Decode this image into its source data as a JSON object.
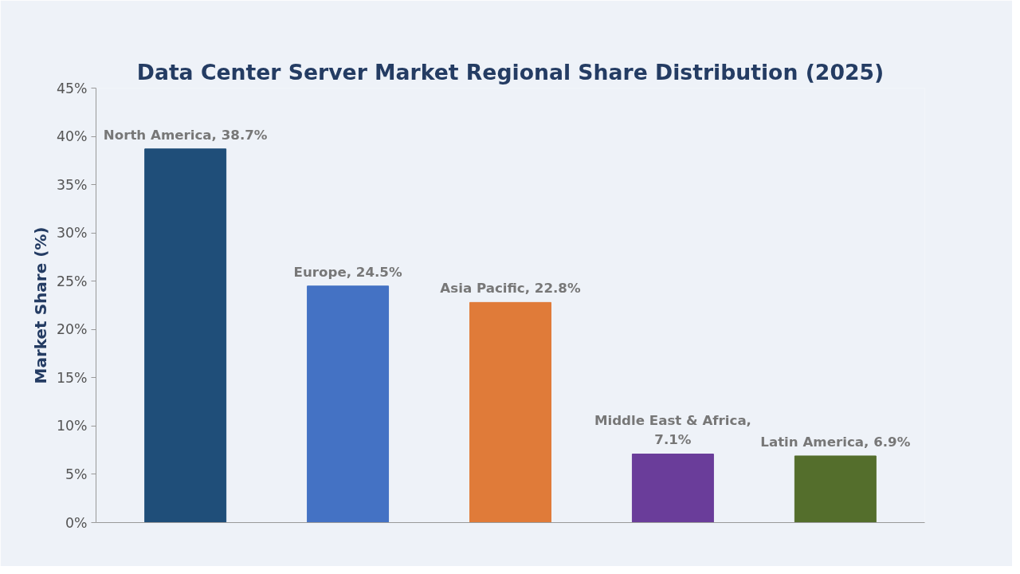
{
  "chart_data": {
    "type": "bar",
    "title": "Data Center Server Market Regional Share Distribution (2025)",
    "ylabel": "Market Share (%)",
    "categories": [
      null,
      null,
      null,
      null,
      null
    ],
    "values": [
      38.7,
      24.5,
      22.8,
      7.1,
      6.9
    ],
    "colors": [
      "#1f4e79",
      "#4472c4",
      "#e07b39",
      "#6a3d9a",
      "#546e2c"
    ],
    "value_labels": [
      "North America, 38.7%",
      "Europe, 24.5%",
      "Asia Pacific, 22.8%",
      "Middle East & Africa, 7.1%",
      "Latin America, 6.9%"
    ],
    "ylim": [
      0,
      45
    ],
    "yticks": [
      {
        "value": 0,
        "label": "0%"
      },
      {
        "value": 5,
        "label": "5%"
      },
      {
        "value": 10,
        "label": "10%"
      },
      {
        "value": 15,
        "label": "15%"
      },
      {
        "value": 20,
        "label": "20%"
      },
      {
        "value": 25,
        "label": "25%"
      },
      {
        "value": 30,
        "label": "30%"
      },
      {
        "value": 35,
        "label": "35%"
      },
      {
        "value": 40,
        "label": "40%"
      },
      {
        "value": 45,
        "label": "45%"
      }
    ],
    "tick_labels": "y",
    "grid": false
  }
}
